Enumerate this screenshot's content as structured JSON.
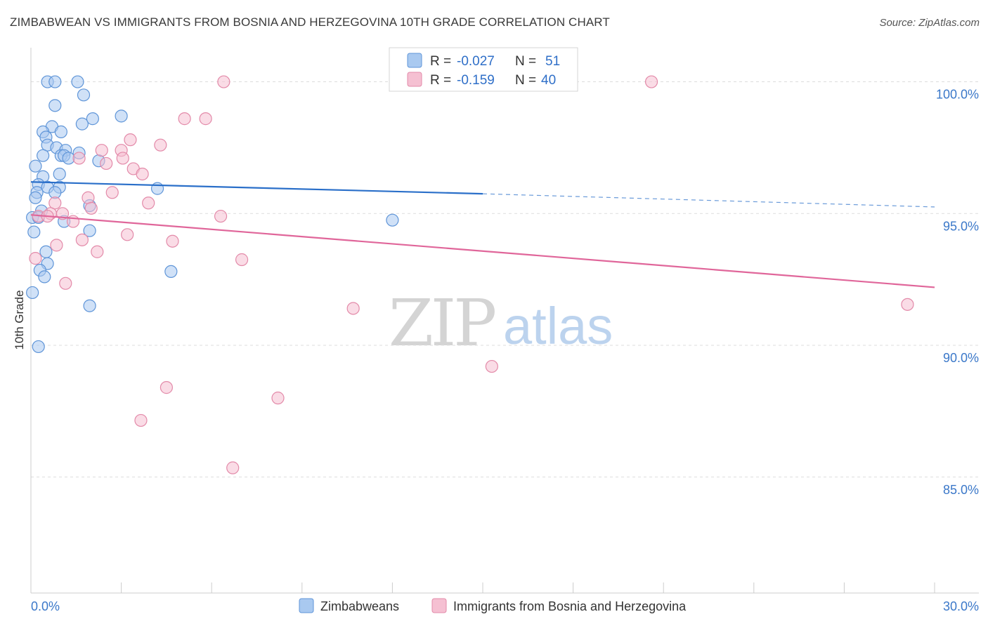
{
  "title": "ZIMBABWEAN VS IMMIGRANTS FROM BOSNIA AND HERZEGOVINA 10TH GRADE CORRELATION CHART",
  "source": "Source: ZipAtlas.com",
  "watermark": {
    "zip": "ZIP",
    "atlas": "atlas"
  },
  "colors": {
    "blue_fill": "#a9c9f0",
    "blue_stroke": "#5f95d8",
    "blue_line": "#2a6fc9",
    "pink_fill": "#f5c0d2",
    "pink_stroke": "#e38aa9",
    "pink_line": "#e0669a",
    "tick_text": "#3b78c9",
    "grid": "#dddddd"
  },
  "legend": {
    "rows": [
      {
        "r_label": "R =",
        "r_value": "-0.027",
        "n_label": "N =",
        "n_value": "51"
      },
      {
        "r_label": "R =",
        "r_value": "-0.159",
        "n_label": "N =",
        "n_value": "40"
      }
    ]
  },
  "bottom_legend": [
    "Zimbabweans",
    "Immigrants from Bosnia and Herzegovina"
  ],
  "chart_data": {
    "type": "scatter",
    "title": "ZIMBABWEAN VS IMMIGRANTS FROM BOSNIA AND HERZEGOVINA 10TH GRADE CORRELATION CHART",
    "xlabel": "",
    "ylabel": "10th Grade",
    "xlim": [
      0,
      30
    ],
    "ylim": [
      80.6,
      101.0
    ],
    "x_tick_labels": [
      "0.0%",
      "30.0%"
    ],
    "y_ticks": [
      {
        "value": 100,
        "label": "100.0%"
      },
      {
        "value": 95,
        "label": "95.0%"
      },
      {
        "value": 90,
        "label": "90.0%"
      },
      {
        "value": 85,
        "label": "85.0%"
      }
    ],
    "series": [
      {
        "name": "Zimbabweans",
        "color": "blue",
        "points": [
          [
            0.55,
            100.0
          ],
          [
            0.8,
            100.0
          ],
          [
            1.55,
            100.0
          ],
          [
            1.75,
            99.5
          ],
          [
            0.8,
            99.1
          ],
          [
            2.05,
            98.6
          ],
          [
            3.0,
            98.7
          ],
          [
            1.7,
            98.4
          ],
          [
            0.7,
            98.3
          ],
          [
            0.4,
            98.1
          ],
          [
            1.0,
            98.1
          ],
          [
            0.5,
            97.9
          ],
          [
            0.55,
            97.6
          ],
          [
            0.85,
            97.5
          ],
          [
            1.15,
            97.4
          ],
          [
            0.4,
            97.2
          ],
          [
            1.0,
            97.2
          ],
          [
            1.1,
            97.2
          ],
          [
            1.6,
            97.3
          ],
          [
            1.25,
            97.1
          ],
          [
            2.25,
            97.0
          ],
          [
            0.15,
            96.8
          ],
          [
            0.4,
            96.4
          ],
          [
            0.95,
            96.5
          ],
          [
            0.25,
            96.1
          ],
          [
            0.55,
            96.0
          ],
          [
            0.95,
            96.0
          ],
          [
            4.2,
            95.95
          ],
          [
            0.2,
            95.8
          ],
          [
            0.8,
            95.8
          ],
          [
            0.15,
            95.6
          ],
          [
            1.95,
            95.3
          ],
          [
            0.35,
            95.1
          ],
          [
            0.05,
            94.85
          ],
          [
            0.25,
            94.85
          ],
          [
            1.1,
            94.7
          ],
          [
            12.0,
            94.75
          ],
          [
            1.95,
            94.35
          ],
          [
            0.1,
            94.3
          ],
          [
            0.5,
            93.55
          ],
          [
            0.55,
            93.1
          ],
          [
            0.3,
            92.85
          ],
          [
            4.65,
            92.8
          ],
          [
            0.45,
            92.6
          ],
          [
            0.05,
            92.0
          ],
          [
            1.95,
            91.5
          ],
          [
            0.25,
            89.95
          ]
        ],
        "trend": {
          "x0": 0,
          "y0": 96.2,
          "x_solid_end": 15,
          "y_solid_end": 95.75,
          "x1": 30,
          "y1": 95.25
        }
      },
      {
        "name": "Immigrants from Bosnia and Herzegovina",
        "color": "pink",
        "points": [
          [
            6.4,
            100.0
          ],
          [
            20.6,
            100.0
          ],
          [
            5.1,
            98.6
          ],
          [
            5.8,
            98.6
          ],
          [
            3.3,
            97.8
          ],
          [
            4.3,
            97.6
          ],
          [
            2.35,
            97.4
          ],
          [
            3.0,
            97.4
          ],
          [
            1.6,
            97.1
          ],
          [
            3.05,
            97.1
          ],
          [
            2.5,
            96.9
          ],
          [
            3.4,
            96.7
          ],
          [
            3.7,
            96.5
          ],
          [
            2.7,
            95.8
          ],
          [
            1.9,
            95.6
          ],
          [
            0.8,
            95.4
          ],
          [
            3.9,
            95.4
          ],
          [
            2.0,
            95.2
          ],
          [
            0.65,
            95.0
          ],
          [
            1.05,
            95.0
          ],
          [
            0.25,
            94.9
          ],
          [
            0.55,
            94.9
          ],
          [
            6.3,
            94.9
          ],
          [
            1.4,
            94.7
          ],
          [
            3.2,
            94.2
          ],
          [
            1.7,
            94.0
          ],
          [
            4.7,
            93.95
          ],
          [
            0.85,
            93.8
          ],
          [
            2.2,
            93.55
          ],
          [
            7.0,
            93.25
          ],
          [
            0.15,
            93.3
          ],
          [
            1.15,
            92.35
          ],
          [
            10.7,
            91.4
          ],
          [
            29.1,
            91.55
          ],
          [
            15.3,
            89.2
          ],
          [
            4.5,
            88.4
          ],
          [
            8.2,
            88.0
          ],
          [
            3.65,
            87.15
          ],
          [
            6.7,
            85.35
          ]
        ],
        "trend": {
          "x0": 0,
          "y0": 94.95,
          "x1": 30,
          "y1": 92.2
        }
      }
    ]
  }
}
